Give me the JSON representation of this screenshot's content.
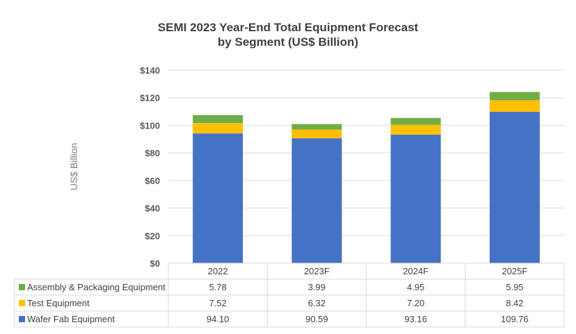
{
  "chart_data": {
    "type": "bar",
    "stacked": true,
    "title_lines": [
      "SEMI 2023 Year-End Total Equipment Forecast",
      "by Segment (US$ Billion)"
    ],
    "ylabel": "US$ Billion",
    "xlabel": "",
    "categories": [
      "2022",
      "2023F",
      "2024F",
      "2025F"
    ],
    "ylim": [
      0,
      140
    ],
    "yticks": [
      0,
      20,
      40,
      60,
      80,
      100,
      120,
      140
    ],
    "ytick_labels": [
      "$0",
      "$20",
      "$40",
      "$60",
      "$80",
      "$100",
      "$120",
      "$140"
    ],
    "grid": true,
    "legend": "data-table-bottom",
    "series": [
      {
        "name": "Wafer Fab Equipment",
        "color": "#4472C4",
        "values": [
          94.1,
          90.59,
          93.16,
          109.76
        ],
        "labels": [
          "94.10",
          "90.59",
          "93.16",
          "109.76"
        ]
      },
      {
        "name": "Test Equipment",
        "color": "#FFC000",
        "values": [
          7.52,
          6.32,
          7.2,
          8.42
        ],
        "labels": [
          "7.52",
          "6.32",
          "7.20",
          "8.42"
        ]
      },
      {
        "name": "Assembly & Packaging Equipment",
        "color": "#70AD47",
        "values": [
          5.78,
          3.99,
          4.95,
          5.95
        ],
        "labels": [
          "5.78",
          "3.99",
          "4.95",
          "5.95"
        ]
      }
    ]
  }
}
